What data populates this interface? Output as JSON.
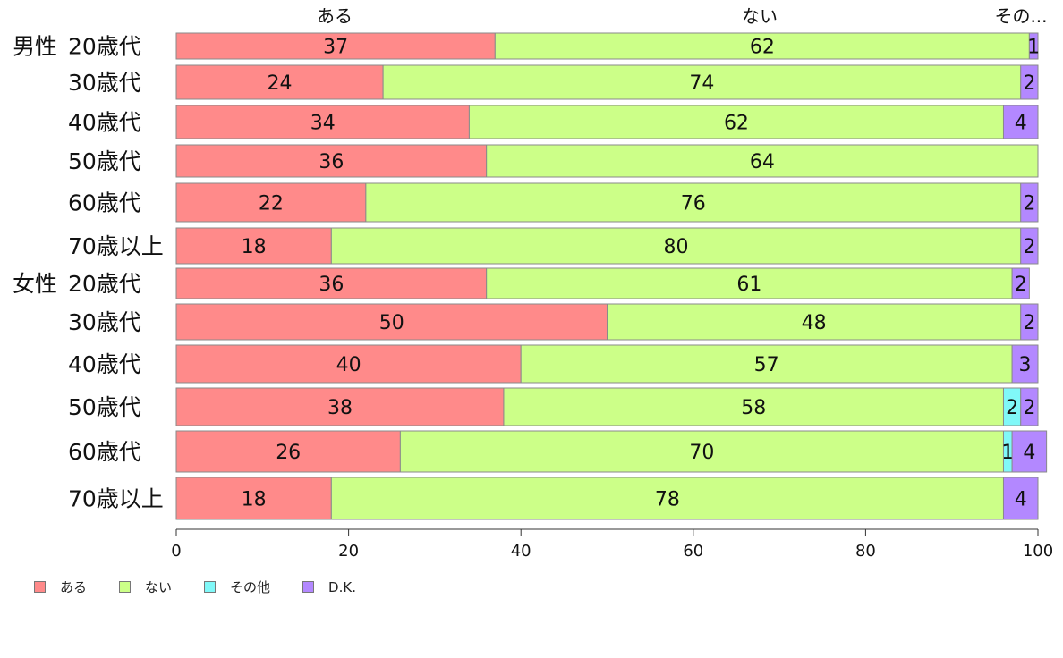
{
  "chart_data": {
    "type": "bar",
    "orientation": "horizontal",
    "stacked": true,
    "column_headers": [
      "ある",
      "ない",
      "その..."
    ],
    "groups": [
      {
        "label": "男性",
        "start_row": 0
      },
      {
        "label": "女性",
        "start_row": 6
      }
    ],
    "categories": [
      "20歳代",
      "30歳代",
      "40歳代",
      "50歳代",
      "60歳代",
      "70歳以上",
      "20歳代",
      "30歳代",
      "40歳代",
      "50歳代",
      "60歳代",
      "70歳以上"
    ],
    "series": [
      {
        "name": "ある",
        "color": "#ff8a8a",
        "values": [
          37,
          24,
          34,
          36,
          22,
          18,
          36,
          50,
          40,
          38,
          26,
          18
        ]
      },
      {
        "name": "ない",
        "color": "#ccff88",
        "values": [
          62,
          74,
          62,
          64,
          76,
          80,
          61,
          48,
          57,
          58,
          70,
          78
        ]
      },
      {
        "name": "その他",
        "color": "#80f8f8",
        "values": [
          0,
          0,
          0,
          0,
          0,
          0,
          0,
          0,
          0,
          2,
          1,
          0
        ]
      },
      {
        "name": "D.K.",
        "color": "#b388ff",
        "values": [
          1,
          2,
          4,
          0,
          2,
          2,
          2,
          2,
          3,
          2,
          4,
          4
        ]
      }
    ],
    "xlim": [
      0,
      100
    ],
    "xticks": [
      0,
      20,
      40,
      60,
      80,
      100
    ],
    "grid": false,
    "legend_position": "bottom-left"
  }
}
